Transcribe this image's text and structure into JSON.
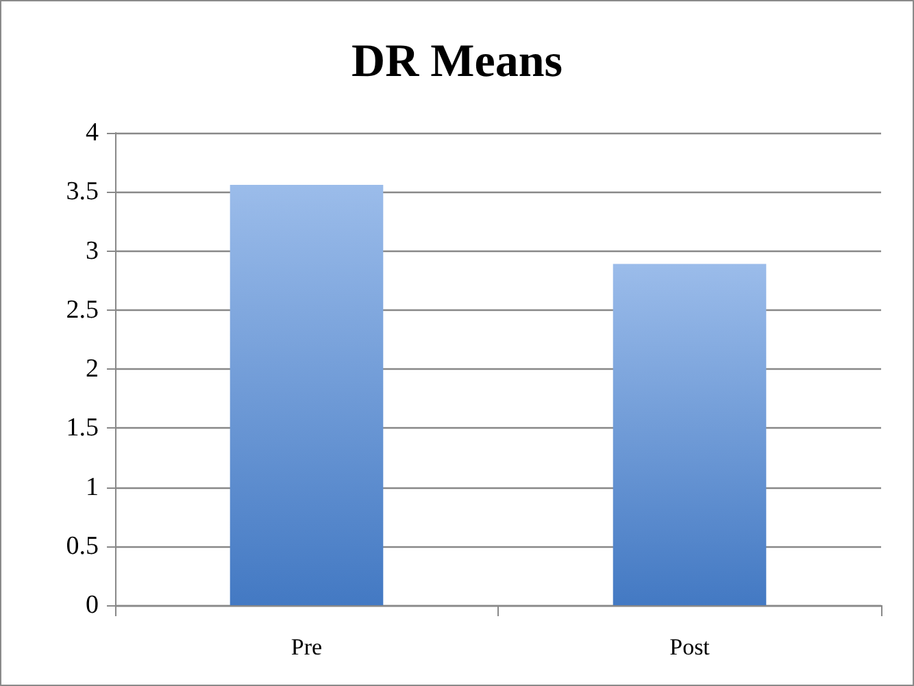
{
  "chart_data": {
    "type": "bar",
    "title": "DR Means",
    "categories": [
      "Pre",
      "Post"
    ],
    "values": [
      3.56,
      2.89
    ],
    "color": "#4a86d9",
    "ylim": [
      0,
      4
    ],
    "yticks": [
      0,
      0.5,
      1,
      1.5,
      2,
      2.5,
      3,
      3.5,
      4
    ],
    "grid": "y"
  }
}
